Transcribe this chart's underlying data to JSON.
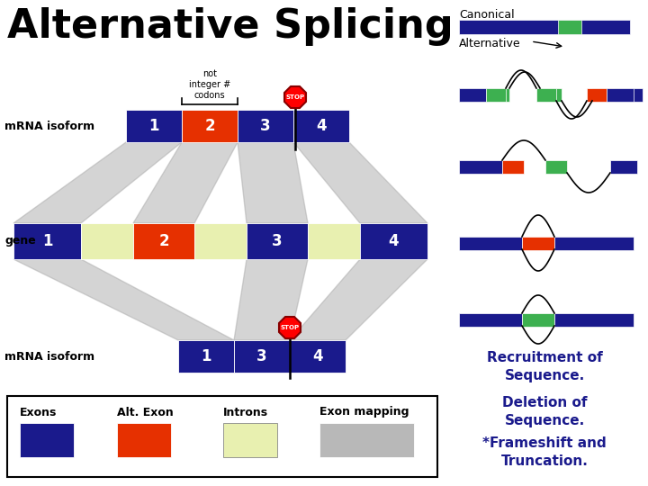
{
  "title": "Alternative Splicing",
  "title_fontsize": 32,
  "title_weight": "bold",
  "bg_color": "#ffffff",
  "dark_blue": "#1a1a8c",
  "orange_red": "#e63000",
  "light_yellow": "#e8f0b0",
  "gray_band": "#aaaaaa",
  "gray_legend": "#b8b8b8",
  "green": "#3db050",
  "text_color_dark_blue": "#1a1a8c",
  "annotation1": "Recruitment of\nSequence.",
  "annotation2": "Deletion of\nSequence.",
  "annotation3": "*Frameshift and\nTruncation."
}
